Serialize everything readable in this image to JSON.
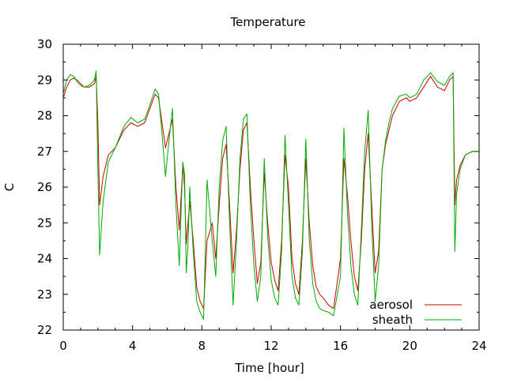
{
  "chart_data": {
    "type": "line",
    "title": "Temperature",
    "xlabel": "Time [hour]",
    "ylabel": "C",
    "xlim": [
      0,
      24
    ],
    "ylim": [
      22,
      30
    ],
    "xticks": [
      0,
      4,
      8,
      12,
      16,
      20,
      24
    ],
    "yticks": [
      22,
      23,
      24,
      25,
      26,
      27,
      28,
      29,
      30
    ],
    "grid": false,
    "legend_position": "bottom-right",
    "series": [
      {
        "name": "aerosol",
        "color": "#cc0000",
        "x": [
          0,
          0.2,
          0.4,
          0.6,
          0.8,
          1.0,
          1.2,
          1.5,
          1.8,
          1.9,
          2.0,
          2.1,
          2.3,
          2.6,
          3.0,
          3.5,
          3.9,
          4.3,
          4.7,
          5.0,
          5.3,
          5.5,
          5.7,
          5.9,
          6.1,
          6.3,
          6.5,
          6.7,
          6.9,
          7.0,
          7.1,
          7.2,
          7.3,
          7.5,
          7.7,
          7.9,
          8.1,
          8.3,
          8.6,
          8.8,
          9.0,
          9.2,
          9.4,
          9.6,
          9.8,
          10.0,
          10.2,
          10.4,
          10.6,
          10.8,
          11.0,
          11.2,
          11.4,
          11.6,
          11.8,
          12.0,
          12.2,
          12.4,
          12.6,
          12.8,
          13.0,
          13.2,
          13.4,
          13.6,
          13.8,
          14.0,
          14.2,
          14.4,
          14.6,
          14.8,
          15.0,
          15.3,
          15.6,
          16.0,
          16.2,
          16.4,
          16.6,
          16.8,
          17.0,
          17.2,
          17.4,
          17.6,
          17.8,
          18.0,
          18.2,
          18.4,
          18.6,
          18.8,
          19.0,
          19.4,
          19.8,
          20.0,
          20.4,
          20.8,
          21.2,
          21.6,
          22.0,
          22.3,
          22.5,
          22.6,
          22.7,
          22.9,
          23.2,
          23.6,
          24.0
        ],
        "values": [
          28.5,
          28.8,
          29.0,
          29.05,
          29.0,
          28.9,
          28.8,
          28.8,
          28.9,
          29.1,
          27.8,
          25.5,
          26.3,
          26.9,
          27.1,
          27.6,
          27.8,
          27.7,
          27.8,
          28.2,
          28.6,
          28.5,
          27.8,
          27.1,
          27.5,
          27.9,
          26.0,
          24.8,
          26.6,
          26.0,
          24.4,
          25.0,
          25.6,
          24.5,
          23.2,
          22.8,
          22.6,
          24.5,
          25.0,
          24.0,
          25.5,
          26.8,
          27.2,
          25.5,
          23.6,
          24.8,
          26.5,
          27.6,
          27.8,
          26.0,
          24.5,
          23.3,
          23.9,
          26.4,
          25.0,
          23.9,
          23.4,
          23.1,
          24.5,
          26.9,
          26.0,
          24.0,
          23.3,
          23.0,
          24.5,
          26.8,
          25.0,
          23.8,
          23.2,
          23.0,
          22.9,
          22.7,
          22.6,
          24.0,
          26.8,
          25.8,
          24.5,
          23.5,
          23.1,
          24.5,
          26.5,
          27.5,
          25.5,
          23.6,
          24.2,
          26.5,
          27.2,
          27.6,
          28.0,
          28.4,
          28.5,
          28.4,
          28.5,
          28.8,
          29.1,
          28.8,
          28.7,
          29.0,
          29.1,
          25.5,
          26.2,
          26.6,
          26.9,
          27.0,
          27.0
        ]
      },
      {
        "name": "sheath",
        "color": "#00aa00",
        "x": [
          0,
          0.2,
          0.4,
          0.6,
          0.8,
          1.0,
          1.2,
          1.5,
          1.8,
          1.9,
          2.0,
          2.1,
          2.3,
          2.6,
          3.0,
          3.5,
          3.9,
          4.3,
          4.7,
          5.0,
          5.3,
          5.5,
          5.7,
          5.9,
          6.1,
          6.3,
          6.5,
          6.7,
          6.9,
          7.0,
          7.1,
          7.2,
          7.3,
          7.5,
          7.7,
          7.9,
          8.1,
          8.3,
          8.6,
          8.8,
          9.0,
          9.2,
          9.4,
          9.6,
          9.8,
          10.0,
          10.2,
          10.4,
          10.6,
          10.8,
          11.0,
          11.2,
          11.4,
          11.6,
          11.8,
          12.0,
          12.2,
          12.4,
          12.6,
          12.8,
          13.0,
          13.2,
          13.4,
          13.6,
          13.8,
          14.0,
          14.2,
          14.4,
          14.6,
          14.8,
          15.0,
          15.3,
          15.6,
          16.0,
          16.2,
          16.4,
          16.6,
          16.8,
          17.0,
          17.2,
          17.4,
          17.6,
          17.8,
          18.0,
          18.2,
          18.4,
          18.6,
          18.8,
          19.0,
          19.4,
          19.8,
          20.0,
          20.4,
          20.8,
          21.2,
          21.6,
          22.0,
          22.3,
          22.5,
          22.6,
          22.7,
          22.9,
          23.2,
          23.6,
          24.0
        ],
        "values": [
          28.6,
          29.0,
          29.15,
          29.1,
          28.95,
          28.85,
          28.8,
          28.85,
          29.0,
          29.25,
          26.5,
          24.1,
          25.6,
          26.7,
          27.1,
          27.7,
          27.95,
          27.8,
          27.9,
          28.3,
          28.75,
          28.6,
          27.5,
          26.3,
          27.3,
          28.2,
          25.5,
          23.8,
          26.7,
          26.4,
          23.6,
          24.4,
          26.0,
          24.2,
          22.8,
          22.5,
          22.3,
          26.2,
          24.5,
          23.5,
          26.0,
          27.3,
          27.7,
          25.0,
          22.7,
          24.5,
          26.8,
          27.9,
          28.05,
          25.5,
          23.8,
          22.8,
          23.5,
          26.8,
          24.6,
          23.4,
          22.9,
          22.7,
          24.2,
          27.45,
          25.5,
          23.5,
          22.9,
          22.7,
          24.2,
          27.35,
          24.5,
          23.3,
          22.8,
          22.6,
          22.55,
          22.5,
          22.4,
          23.5,
          27.65,
          25.3,
          23.8,
          23.0,
          22.7,
          24.8,
          27.0,
          28.15,
          25.0,
          22.8,
          23.8,
          26.5,
          27.3,
          27.8,
          28.2,
          28.55,
          28.6,
          28.5,
          28.6,
          29.0,
          29.2,
          28.95,
          28.85,
          29.1,
          29.2,
          24.2,
          25.8,
          26.5,
          26.9,
          27.0,
          27.0
        ]
      }
    ]
  }
}
